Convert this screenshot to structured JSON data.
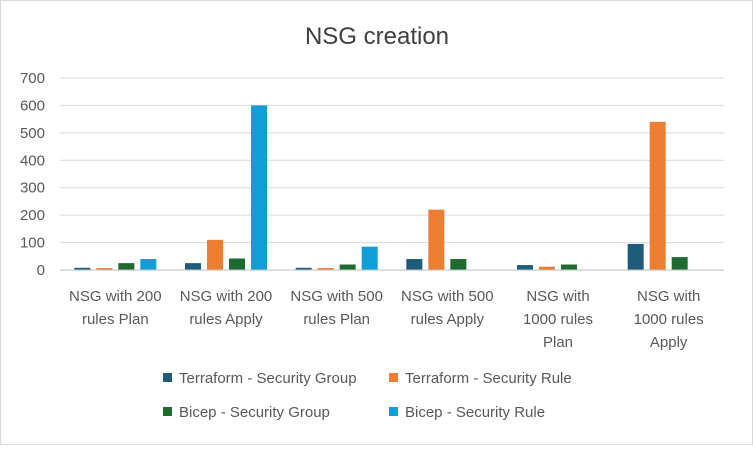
{
  "chart_data": {
    "type": "bar",
    "title": "NSG creation",
    "xlabel": "",
    "ylabel": "",
    "ylim": [
      0,
      700
    ],
    "yticks": [
      0,
      100,
      200,
      300,
      400,
      500,
      600,
      700
    ],
    "grid": true,
    "legend_position": "bottom",
    "categories": [
      [
        "NSG with 200",
        "rules  Plan"
      ],
      [
        "NSG with 200",
        "rules  Apply"
      ],
      [
        "NSG with 500",
        "rules  Plan"
      ],
      [
        "NSG with 500",
        "rules  Apply"
      ],
      [
        "NSG with",
        "1000 rules",
        "Plan"
      ],
      [
        "NSG with",
        "1000 rules",
        "Apply"
      ]
    ],
    "series": [
      {
        "name": "Terraform - Security Group",
        "color": "#1f5c7a",
        "values": [
          8,
          25,
          8,
          40,
          18,
          95
        ]
      },
      {
        "name": "Terraform - Security Rule",
        "color": "#ed7d31",
        "values": [
          7,
          110,
          7,
          220,
          12,
          540
        ]
      },
      {
        "name": "Bicep - Security Group",
        "color": "#1e6b30",
        "values": [
          25,
          42,
          20,
          40,
          20,
          47
        ]
      },
      {
        "name": "Bicep - Security Rule",
        "color": "#0f9ed5",
        "values": [
          40,
          600,
          85,
          0,
          0,
          0
        ]
      }
    ]
  }
}
